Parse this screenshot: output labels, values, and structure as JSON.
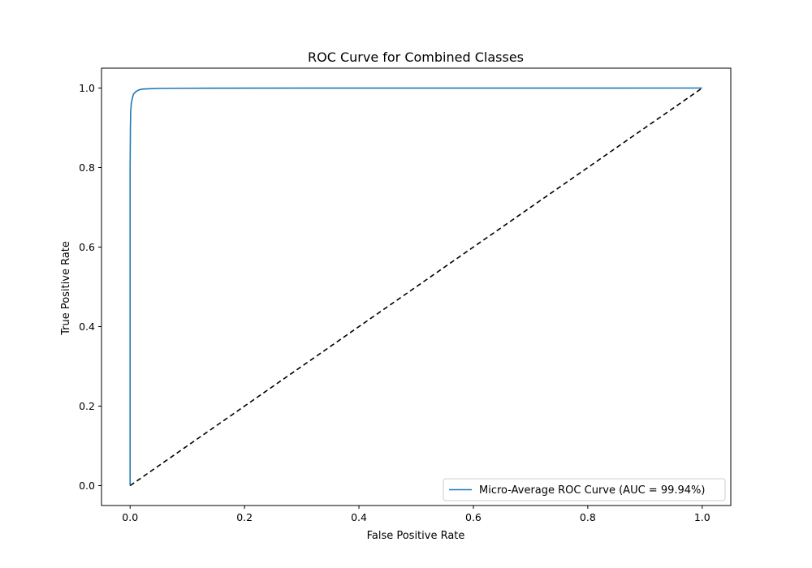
{
  "chart_data": {
    "type": "line",
    "title": "ROC Curve for Combined Classes",
    "xlabel": "False Positive Rate",
    "ylabel": "True Positive Rate",
    "xlim": [
      -0.05,
      1.05
    ],
    "ylim": [
      -0.05,
      1.05
    ],
    "xticks": [
      0.0,
      0.2,
      0.4,
      0.6,
      0.8,
      1.0
    ],
    "yticks": [
      0.0,
      0.2,
      0.4,
      0.6,
      0.8,
      1.0
    ],
    "xtick_labels": [
      "0.0",
      "0.2",
      "0.4",
      "0.6",
      "0.8",
      "1.0"
    ],
    "ytick_labels": [
      "0.0",
      "0.2",
      "0.4",
      "0.6",
      "0.8",
      "1.0"
    ],
    "grid": false,
    "legend_position": "lower-right",
    "series": [
      {
        "name": "Micro-Average ROC Curve (AUC = 99.94%)",
        "color": "#1f77b4",
        "style": "solid",
        "x": [
          0.0,
          0.0,
          0.0005,
          0.001,
          0.002,
          0.004,
          0.006,
          0.01,
          0.015,
          0.02,
          0.03,
          0.05,
          0.1,
          0.3,
          0.6,
          1.0
        ],
        "y": [
          0.0,
          0.8,
          0.9,
          0.94,
          0.96,
          0.975,
          0.985,
          0.991,
          0.995,
          0.997,
          0.998,
          0.999,
          0.9995,
          0.9998,
          0.9999,
          1.0
        ]
      },
      {
        "color": "#000000",
        "style": "dashed",
        "x": [
          0.0,
          1.0
        ],
        "y": [
          0.0,
          1.0
        ]
      }
    ]
  }
}
